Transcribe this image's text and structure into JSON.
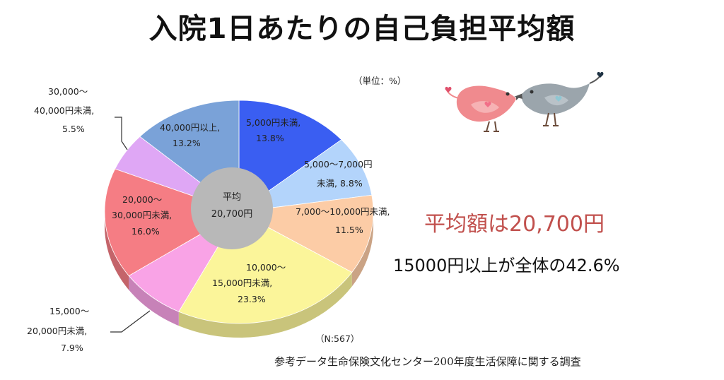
{
  "title": "入院1日あたりの自己負担平均額",
  "unit_note": "（単位：%）",
  "sample_note": "（N:567）",
  "highlight": {
    "average": "平均額は20,700円",
    "share": "15000円以上が全体の42.6%"
  },
  "source": "参考データ生命保険文化センター200年度生活保障に関する調査",
  "colors": {
    "title": "#111111",
    "highlight_average": "#c1504d"
  },
  "chart_data": {
    "type": "pie",
    "unit": "%",
    "center_label": [
      "平均",
      "20,700円"
    ],
    "slices": [
      {
        "label": "5,000円未満,",
        "value": 13.8,
        "value_label": "13.8%",
        "color": "#3a5ef2"
      },
      {
        "label": "5,000〜7,000円未満,",
        "value": 8.8,
        "value_label": "8.8%",
        "color": "#b3d4fb"
      },
      {
        "label": "7,000〜10,000円未満,",
        "value": 11.5,
        "value_label": "11.5%",
        "color": "#fccca6"
      },
      {
        "label": "10,000〜15,000円未満,",
        "value": 23.3,
        "value_label": "23.3%",
        "color": "#fbf59a"
      },
      {
        "label": "15,000〜20,000円未満,",
        "value": 7.9,
        "value_label": "7.9%",
        "color": "#f9a3e6"
      },
      {
        "label": "20,000〜30,000円未満,",
        "value": 16.0,
        "value_label": "16.0%",
        "color": "#f57d84"
      },
      {
        "label": "30,000〜40,000円未満,",
        "value": 5.5,
        "value_label": "5.5%",
        "color": "#dfa7f5"
      },
      {
        "label": "40,000円以上,",
        "value": 13.2,
        "value_label": "13.2%",
        "color": "#7aa2d8"
      }
    ]
  }
}
